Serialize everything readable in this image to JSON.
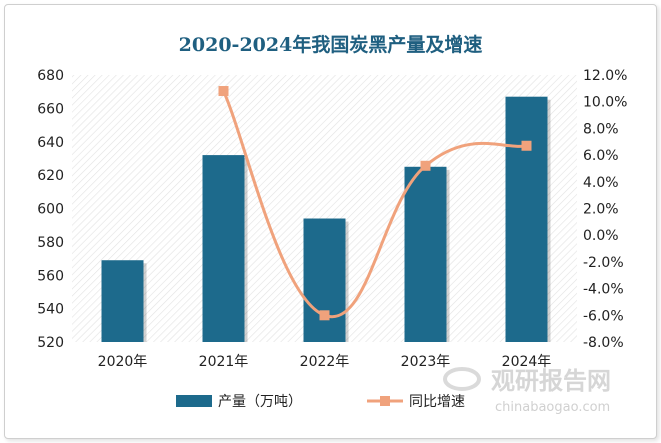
{
  "chart_data": {
    "type": "bar",
    "title": "2020-2024年我国炭黑产量及增速",
    "categories": [
      "2020年",
      "2021年",
      "2022年",
      "2023年",
      "2024年"
    ],
    "series": [
      {
        "name": "产量（万吨）",
        "type": "bar",
        "axis": "left",
        "values": [
          569,
          632,
          594,
          625,
          667
        ],
        "color": "#1d6a8c"
      },
      {
        "name": "同比增速",
        "type": "line",
        "axis": "right",
        "values": [
          null,
          10.8,
          -6.0,
          5.2,
          6.7
        ],
        "color": "#f0a27c"
      }
    ],
    "y_left": {
      "min": 520,
      "max": 680,
      "step": 20
    },
    "y_right": {
      "min": -8,
      "max": 12,
      "step": 2,
      "format": "percent1"
    },
    "legend_position": "bottom"
  },
  "watermark": {
    "logo_text": "观研报告网",
    "url_text": "chinabaogao.com"
  }
}
